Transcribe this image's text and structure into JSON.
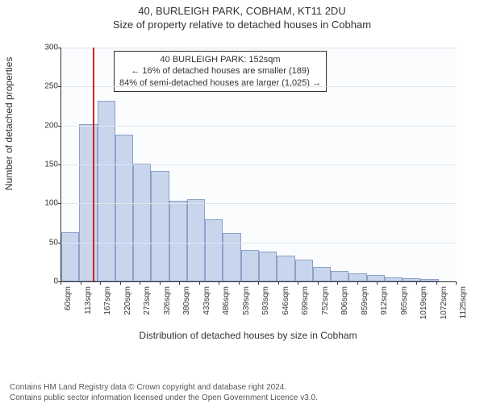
{
  "header": {
    "title_main": "40, BURLEIGH PARK, COBHAM, KT11 2DU",
    "title_sub": "Size of property relative to detached houses in Cobham"
  },
  "chart": {
    "type": "histogram",
    "ylabel": "Number of detached properties",
    "xlabel": "Distribution of detached houses by size in Cobham",
    "background_color": "#fbfcfe",
    "grid_color": "#e0e4ea",
    "bar_fill": "#c8d5ec",
    "bar_border": "#8aa1c9",
    "axis_color": "#333333",
    "ylim": [
      0,
      300
    ],
    "ytick_step": 50,
    "yticks": [
      0,
      50,
      100,
      150,
      200,
      250,
      300
    ],
    "xtick_labels": [
      "60sqm",
      "113sqm",
      "167sqm",
      "220sqm",
      "273sqm",
      "326sqm",
      "380sqm",
      "433sqm",
      "486sqm",
      "539sqm",
      "593sqm",
      "646sqm",
      "699sqm",
      "752sqm",
      "806sqm",
      "859sqm",
      "912sqm",
      "965sqm",
      "1019sqm",
      "1072sqm",
      "1125sqm"
    ],
    "values": [
      63,
      202,
      232,
      188,
      151,
      142,
      103,
      106,
      80,
      62,
      40,
      38,
      33,
      28,
      19,
      13,
      10,
      8,
      5,
      4,
      3,
      0
    ],
    "marker": {
      "position_bin_index": 1.76,
      "color": "#d02020"
    },
    "annotation": {
      "line1": "40 BURLEIGH PARK: 152sqm",
      "line2": "← 16% of detached houses are smaller (189)",
      "line3": "84% of semi-detached houses are larger (1,025) →",
      "box_border": "#333333",
      "box_bg": "#ffffff",
      "fontsize": 11
    },
    "label_fontsize": 12,
    "tick_fontsize": 10
  },
  "footer": {
    "line1": "Contains HM Land Registry data © Crown copyright and database right 2024.",
    "line2": "Contains public sector information licensed under the Open Government Licence v3.0."
  }
}
